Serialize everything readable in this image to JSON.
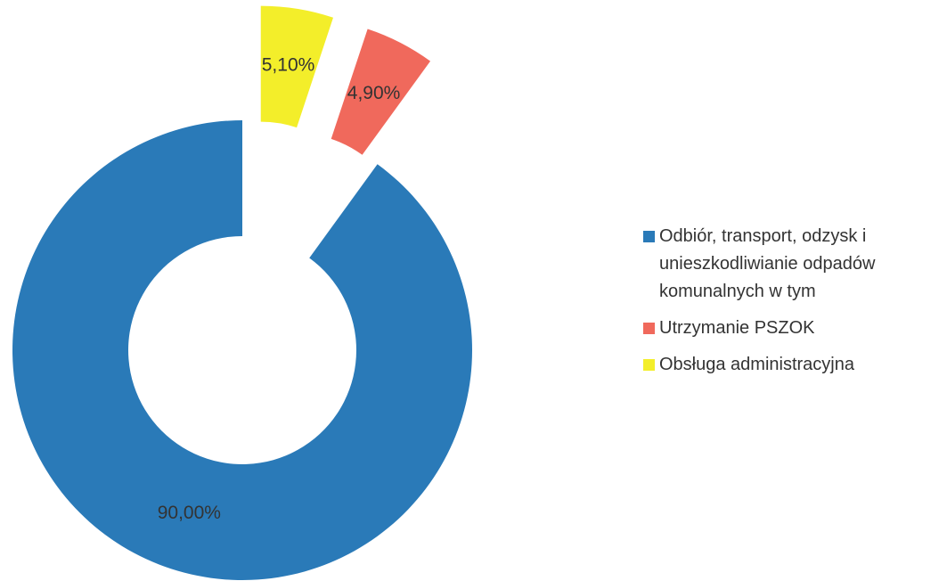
{
  "chart_data": {
    "type": "donut",
    "categories": [
      "Odbiór, transport, odzysk i unieszkodliwianie odpadów komunalnych w tym",
      "Utrzymanie PSZOK",
      "Obsługa administracyjna"
    ],
    "values": [
      90,
      4.9,
      5.1
    ],
    "value_labels": [
      "90,00%",
      "4,90%",
      "5,10%"
    ],
    "colors": [
      "#2a7ab8",
      "#f0695c",
      "#f3ee2a"
    ],
    "legend": "right"
  }
}
